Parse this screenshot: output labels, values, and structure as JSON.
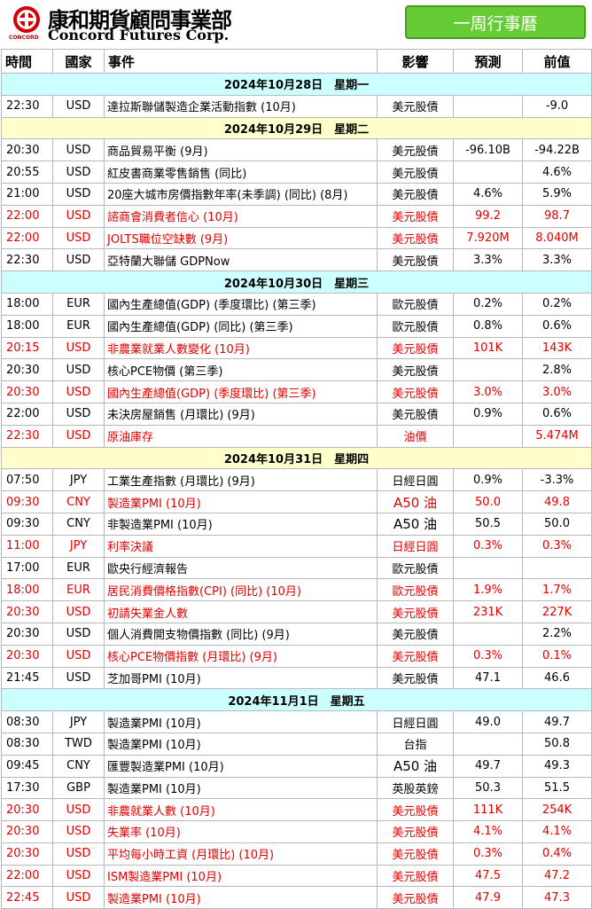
{
  "header": {
    "logo_zh": "康和期貨顧問事業部",
    "logo_en": "Concord Futures Corp.",
    "logo_small": "CONCORD",
    "title": "一周行事曆"
  },
  "columns": [
    "時間",
    "國家",
    "事件",
    "影響",
    "預測",
    "前值"
  ],
  "colors": {
    "highlight_text": "#e00000",
    "date_bg_cyan": "#ccffff",
    "date_bg_yellow": "#ffffcc",
    "button_green": "#66cc33"
  },
  "days": [
    {
      "date": "2024年10月28日　星期一",
      "bg": "#ccffff",
      "rows": [
        {
          "time": "22:30",
          "country": "USD",
          "event": "達拉斯聯儲製造企業活動指數 (10月)",
          "impact": "美元股債",
          "forecast": "",
          "previous": "-9.0",
          "highlight": false
        }
      ]
    },
    {
      "date": "2024年10月29日　星期二",
      "bg": "#ffffcc",
      "rows": [
        {
          "time": "20:30",
          "country": "USD",
          "event": "商品貿易平衡 (9月)",
          "impact": "美元股債",
          "forecast": "-96.10B",
          "previous": "-94.22B",
          "highlight": false
        },
        {
          "time": "20:55",
          "country": "USD",
          "event": "紅皮書商業零售銷售 (同比)",
          "impact": "美元股債",
          "forecast": "",
          "previous": "4.6%",
          "highlight": false
        },
        {
          "time": "21:00",
          "country": "USD",
          "event": "20座大城市房價指數年率(未季調) (同比) (8月)",
          "impact": "美元股債",
          "forecast": "4.6%",
          "previous": "5.9%",
          "highlight": false
        },
        {
          "time": "22:00",
          "country": "USD",
          "event": "諮商會消費者信心 (10月)",
          "impact": "美元股債",
          "forecast": "99.2",
          "previous": "98.7",
          "highlight": true
        },
        {
          "time": "22:00",
          "country": "USD",
          "event": "JOLTS職位空缺數 (9月)",
          "impact": "美元股債",
          "forecast": "7.920M",
          "previous": "8.040M",
          "highlight": true
        },
        {
          "time": "22:30",
          "country": "USD",
          "event": "亞特蘭大聯儲 GDPNow",
          "impact": "美元股債",
          "forecast": "3.3%",
          "previous": "3.3%",
          "highlight": false
        }
      ]
    },
    {
      "date": "2024年10月30日　星期三",
      "bg": "#ccffff",
      "rows": [
        {
          "time": "18:00",
          "country": "EUR",
          "event": "國內生產總值(GDP) (季度環比) (第三季)",
          "impact": "歐元股債",
          "forecast": "0.2%",
          "previous": "0.2%",
          "highlight": false
        },
        {
          "time": "18:00",
          "country": "EUR",
          "event": "國內生產總值(GDP) (同比) (第三季)",
          "impact": "歐元股債",
          "forecast": "0.8%",
          "previous": "0.6%",
          "highlight": false
        },
        {
          "time": "20:15",
          "country": "USD",
          "event": "非農業就業人數變化 (10月)",
          "impact": "美元股債",
          "forecast": "101K",
          "previous": "143K",
          "highlight": true
        },
        {
          "time": "20:30",
          "country": "USD",
          "event": "核心PCE物價 (第三季)",
          "impact": "美元股債",
          "forecast": "",
          "previous": "2.8%",
          "highlight": false
        },
        {
          "time": "20:30",
          "country": "USD",
          "event": "國內生產總值(GDP) (季度環比) (第三季)",
          "impact": "美元股債",
          "forecast": "3.0%",
          "previous": "3.0%",
          "highlight": true
        },
        {
          "time": "22:00",
          "country": "USD",
          "event": "未決房屋銷售 (月環比) (9月)",
          "impact": "美元股債",
          "forecast": "0.9%",
          "previous": "0.6%",
          "highlight": false
        },
        {
          "time": "22:30",
          "country": "USD",
          "event": "原油庫存",
          "impact": "油價",
          "forecast": "",
          "previous": "5.474M",
          "highlight": true
        }
      ]
    },
    {
      "date": "2024年10月31日　星期四",
      "bg": "#ffffcc",
      "rows": [
        {
          "time": "07:50",
          "country": "JPY",
          "event": "工業生產指數 (月環比) (9月)",
          "impact": "日經日圓",
          "forecast": "0.9%",
          "previous": "-3.3%",
          "highlight": false
        },
        {
          "time": "09:30",
          "country": "CNY",
          "event": "製造業PMI (10月)",
          "impact": "A50 油",
          "forecast": "50.0",
          "previous": "49.8",
          "highlight": true
        },
        {
          "time": "09:30",
          "country": "CNY",
          "event": "非製造業PMI (10月)",
          "impact": "A50 油",
          "forecast": "50.5",
          "previous": "50.0",
          "highlight": false
        },
        {
          "time": "11:00",
          "country": "JPY",
          "event": "利率決議",
          "impact": "日經日圓",
          "forecast": "0.3%",
          "previous": "0.3%",
          "highlight": true
        },
        {
          "time": "17:00",
          "country": "EUR",
          "event": "歐央行經濟報告",
          "impact": "歐元股債",
          "forecast": "",
          "previous": "",
          "highlight": false
        },
        {
          "time": "18:00",
          "country": "EUR",
          "event": "居民消費價格指數(CPI) (同比) (10月)",
          "impact": "歐元股債",
          "forecast": "1.9%",
          "previous": "1.7%",
          "highlight": true
        },
        {
          "time": "20:30",
          "country": "USD",
          "event": "初請失業金人數",
          "impact": "美元股債",
          "forecast": "231K",
          "previous": "227K",
          "highlight": true
        },
        {
          "time": "20:30",
          "country": "USD",
          "event": "個人消費開支物價指數 (同比) (9月)",
          "impact": "美元股債",
          "forecast": "",
          "previous": "2.2%",
          "highlight": false
        },
        {
          "time": "20:30",
          "country": "USD",
          "event": "核心PCE物價指數 (月環比) (9月)",
          "impact": "美元股債",
          "forecast": "0.3%",
          "previous": "0.1%",
          "highlight": true
        },
        {
          "time": "21:45",
          "country": "USD",
          "event": "芝加哥PMI (10月)",
          "impact": "美元股債",
          "forecast": "47.1",
          "previous": "46.6",
          "highlight": false
        }
      ]
    },
    {
      "date": "2024年11月1日　星期五",
      "bg": "#ccffff",
      "rows": [
        {
          "time": "08:30",
          "country": "JPY",
          "event": "製造業PMI (10月)",
          "impact": "日經日圓",
          "forecast": "49.0",
          "previous": "49.7",
          "highlight": false
        },
        {
          "time": "08:30",
          "country": "TWD",
          "event": "製造業PMI (10月)",
          "impact": "台指",
          "forecast": "",
          "previous": "50.8",
          "highlight": false
        },
        {
          "time": "09:45",
          "country": "CNY",
          "event": "匯豐製造業PMI (10月)",
          "impact": "A50 油",
          "forecast": "49.7",
          "previous": "49.3",
          "highlight": false
        },
        {
          "time": "17:30",
          "country": "GBP",
          "event": "製造業PMI (10月)",
          "impact": "英股英鎊",
          "forecast": "50.3",
          "previous": "51.5",
          "highlight": false
        },
        {
          "time": "20:30",
          "country": "USD",
          "event": "非農就業人數 (10月)",
          "impact": "美元股債",
          "forecast": "111K",
          "previous": "254K",
          "highlight": true
        },
        {
          "time": "20:30",
          "country": "USD",
          "event": "失業率 (10月)",
          "impact": "美元股債",
          "forecast": "4.1%",
          "previous": "4.1%",
          "highlight": true
        },
        {
          "time": "20:30",
          "country": "USD",
          "event": "平均每小時工資 (月環比) (10月)",
          "impact": "美元股債",
          "forecast": "0.3%",
          "previous": "0.4%",
          "highlight": true
        },
        {
          "time": "22:00",
          "country": "USD",
          "event": "ISM製造業PMI (10月)",
          "impact": "美元股債",
          "forecast": "47.5",
          "previous": "47.2",
          "highlight": true
        },
        {
          "time": "22:45",
          "country": "USD",
          "event": "製造業PMI (10月)",
          "impact": "美元股債",
          "forecast": "47.9",
          "previous": "47.3",
          "highlight": true
        }
      ]
    }
  ]
}
